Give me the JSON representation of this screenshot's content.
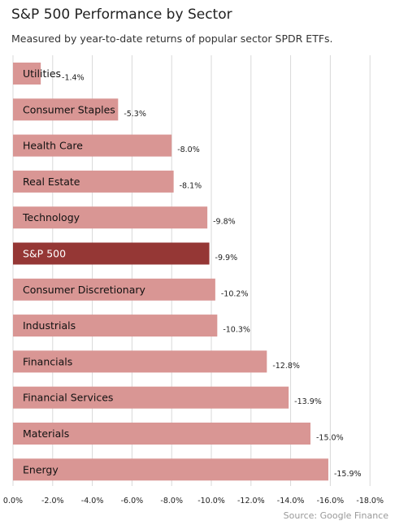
{
  "chart_data": {
    "type": "bar",
    "orientation": "horizontal",
    "title": "S&P 500 Performance by Sector",
    "subtitle": "Measured by year-to-date returns of popular sector SPDR ETFs.",
    "source": "Source: Google Finance",
    "categories": [
      "Utilities",
      "Consumer Staples",
      "Health Care",
      "Real Estate",
      "Technology",
      "S&P 500",
      "Consumer Discretionary",
      "Industrials",
      "Financials",
      "Financial Services",
      "Materials",
      "Energy"
    ],
    "values": [
      -1.4,
      -5.3,
      -8.0,
      -8.1,
      -9.8,
      -9.9,
      -10.2,
      -10.3,
      -12.8,
      -13.9,
      -15.0,
      -15.9
    ],
    "value_labels": [
      "-1.4%",
      "-5.3%",
      "-8.0%",
      "-8.1%",
      "-9.8%",
      "-9.9%",
      "-10.2%",
      "-10.3%",
      "-12.8%",
      "-13.9%",
      "-15.0%",
      "-15.9%"
    ],
    "highlight": "S&P 500",
    "xlim": [
      0,
      -18
    ],
    "x_ticks": [
      0,
      -2,
      -4,
      -6,
      -8,
      -10,
      -12,
      -14,
      -16,
      -18
    ],
    "x_tick_labels": [
      "0.0%",
      "-2.0%",
      "-4.0%",
      "-6.0%",
      "-8.0%",
      "-10.0%",
      "-12.0%",
      "-14.0%",
      "-16.0%",
      "-18.0%"
    ],
    "grid": true,
    "colors": {
      "bar": "#d99694",
      "highlight": "#953735",
      "grid": "#d9d9d9"
    }
  }
}
